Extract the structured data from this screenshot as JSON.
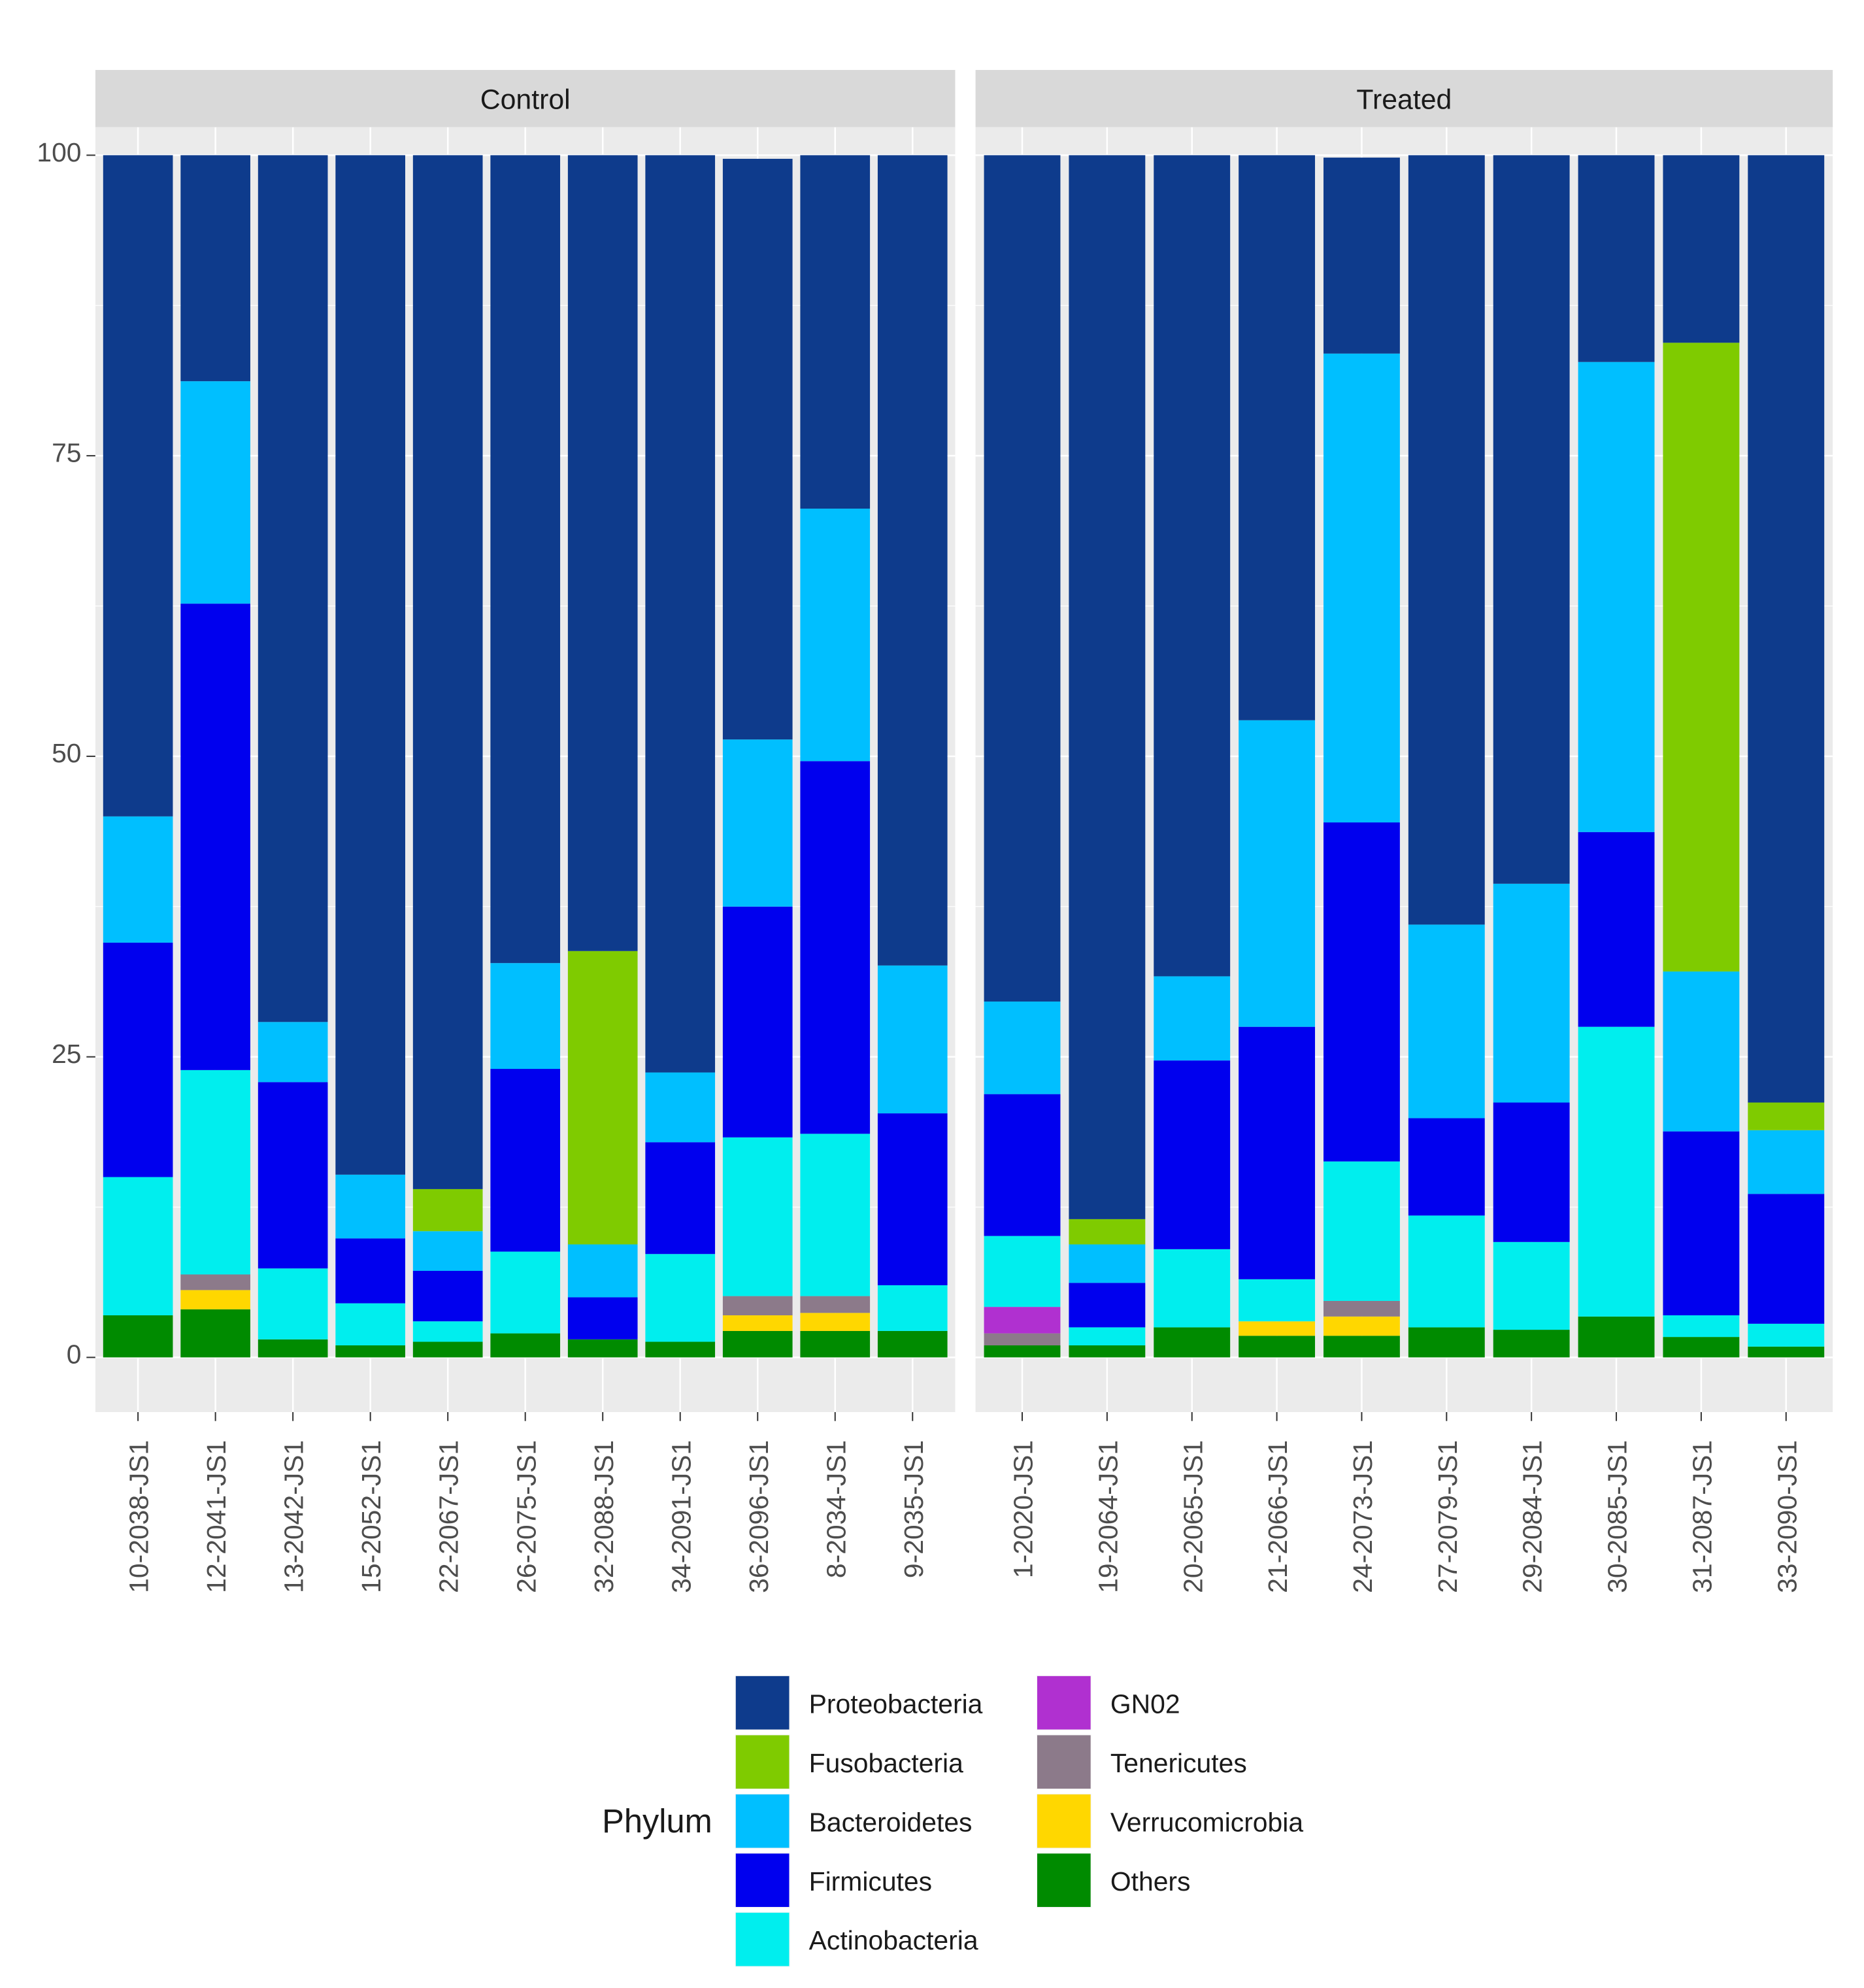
{
  "chart_data": {
    "type": "bar",
    "stacked": true,
    "facet_by": "group",
    "ylim": [
      0,
      100
    ],
    "yticks": [
      0,
      25,
      50,
      75,
      100
    ],
    "xlabel": "",
    "ylabel": "",
    "legend": {
      "title": "Phylum",
      "position": "bottom",
      "columns": [
        [
          "Proteobacteria",
          "Fusobacteria",
          "Bacteroidetes",
          "Firmicutes",
          "Actinobacteria"
        ],
        [
          "GN02",
          "Tenericutes",
          "Verrucomicrobia",
          "Others"
        ]
      ]
    },
    "stack_order_bottom_to_top": [
      "Others",
      "Verrucomicrobia",
      "Tenericutes",
      "GN02",
      "Actinobacteria",
      "Firmicutes",
      "Bacteroidetes",
      "Fusobacteria",
      "Proteobacteria"
    ],
    "colors": {
      "Proteobacteria": "#0E3B8C",
      "Fusobacteria": "#7FCB00",
      "Bacteroidetes": "#00BFFF",
      "Firmicutes": "#0000EE",
      "Actinobacteria": "#00EEEE",
      "GN02": "#B030D0",
      "Tenericutes": "#8C7A8A",
      "Verrucomicrobia": "#FFD700",
      "Others": "#008B00"
    },
    "panels": [
      {
        "title": "Control",
        "categories": [
          "10-2038-JS1",
          "12-2041-JS1",
          "13-2042-JS1",
          "15-2052-JS1",
          "22-2067-JS1",
          "26-2075-JS1",
          "32-2088-JS1",
          "34-2091-JS1",
          "36-2096-JS1",
          "8-2034-JS1",
          "9-2035-JS1"
        ],
        "series": [
          {
            "name": "Others",
            "values": [
              3.5,
              4.0,
              1.5,
              1.0,
              1.3,
              2.0,
              1.5,
              1.3,
              2.2,
              2.2,
              2.2
            ]
          },
          {
            "name": "Verrucomicrobia",
            "values": [
              0,
              1.6,
              0,
              0,
              0,
              0,
              0,
              0,
              1.3,
              1.5,
              0
            ]
          },
          {
            "name": "Tenericutes",
            "values": [
              0,
              1.3,
              0,
              0,
              0,
              0,
              0,
              0,
              1.6,
              1.4,
              0
            ]
          },
          {
            "name": "GN02",
            "values": [
              0,
              0,
              0,
              0,
              0,
              0,
              0,
              0,
              0,
              0,
              0
            ]
          },
          {
            "name": "Actinobacteria",
            "values": [
              11.5,
              17.0,
              5.9,
              3.5,
              1.7,
              6.8,
              0,
              7.3,
              13.2,
              13.5,
              3.8
            ]
          },
          {
            "name": "Firmicutes",
            "values": [
              19.5,
              38.8,
              15.5,
              5.4,
              4.2,
              15.2,
              3.5,
              9.3,
              19.2,
              31.0,
              14.3
            ]
          },
          {
            "name": "Bacteroidetes",
            "values": [
              10.5,
              18.5,
              5.0,
              5.3,
              3.3,
              8.8,
              4.4,
              5.8,
              13.9,
              21.0,
              12.3
            ]
          },
          {
            "name": "Fusobacteria",
            "values": [
              0,
              0,
              0,
              0,
              3.5,
              0,
              24.4,
              0,
              0,
              0,
              0
            ]
          },
          {
            "name": "Proteobacteria",
            "values": [
              55.0,
              18.8,
              72.1,
              84.8,
              86.0,
              67.2,
              66.2,
              76.3,
              48.3,
              29.4,
              67.4
            ]
          }
        ]
      },
      {
        "title": "Treated",
        "categories": [
          "1-2020-JS1",
          "19-2064-JS1",
          "20-2065-JS1",
          "21-2066-JS1",
          "24-2073-JS1",
          "27-2079-JS1",
          "29-2084-JS1",
          "30-2085-JS1",
          "31-2087-JS1",
          "33-2090-JS1"
        ],
        "series": [
          {
            "name": "Others",
            "values": [
              1.0,
              1.0,
              2.5,
              1.8,
              1.8,
              2.5,
              2.3,
              3.4,
              1.7,
              0.9
            ]
          },
          {
            "name": "Verrucomicrobia",
            "values": [
              0,
              0,
              0,
              1.2,
              1.6,
              0,
              0,
              0,
              0,
              0
            ]
          },
          {
            "name": "Tenericutes",
            "values": [
              1.0,
              0,
              0,
              0,
              1.3,
              0,
              0,
              0,
              0,
              0
            ]
          },
          {
            "name": "GN02",
            "values": [
              2.2,
              0,
              0,
              0,
              0,
              0,
              0,
              0,
              0,
              0
            ]
          },
          {
            "name": "Actinobacteria",
            "values": [
              5.9,
              1.5,
              6.5,
              3.5,
              11.6,
              9.3,
              7.3,
              24.1,
              1.8,
              1.9
            ]
          },
          {
            "name": "Firmicutes",
            "values": [
              11.8,
              3.7,
              15.7,
              21.0,
              28.2,
              8.1,
              11.6,
              16.2,
              15.3,
              10.8
            ]
          },
          {
            "name": "Bacteroidetes",
            "values": [
              7.7,
              3.2,
              7.0,
              25.5,
              39.0,
              16.1,
              18.2,
              39.1,
              13.3,
              5.3
            ]
          },
          {
            "name": "Fusobacteria",
            "values": [
              0,
              2.1,
              0,
              0,
              0,
              0,
              0,
              0,
              52.3,
              2.3
            ]
          },
          {
            "name": "Proteobacteria",
            "values": [
              70.4,
              88.5,
              68.3,
              47.0,
              16.3,
              64.0,
              60.6,
              17.2,
              15.6,
              78.8
            ]
          }
        ]
      }
    ]
  }
}
